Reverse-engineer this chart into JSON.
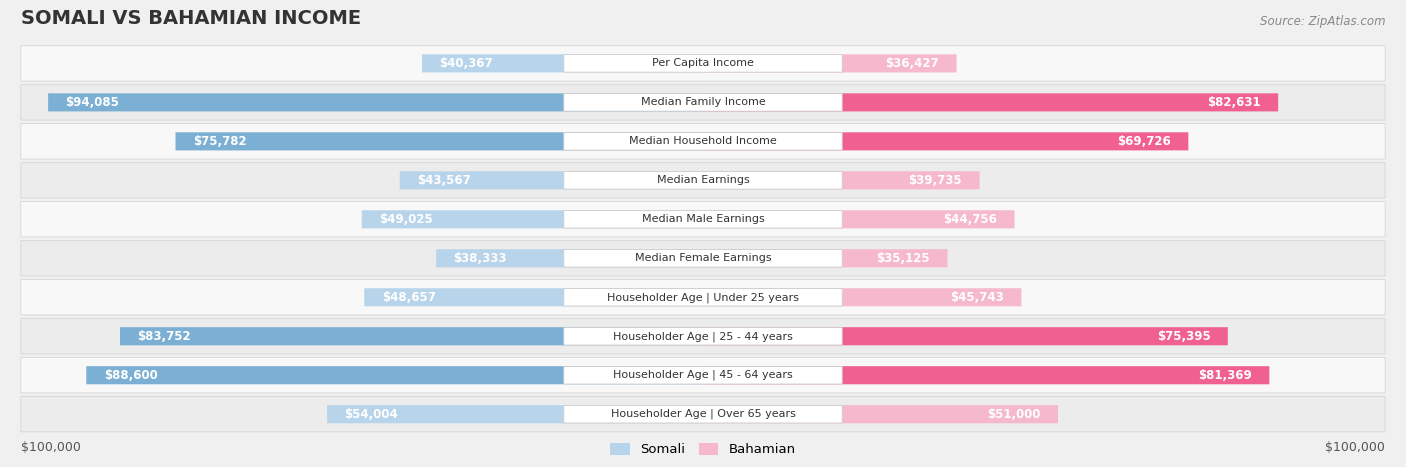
{
  "title": "SOMALI VS BAHAMIAN INCOME",
  "source": "Source: ZipAtlas.com",
  "categories": [
    "Per Capita Income",
    "Median Family Income",
    "Median Household Income",
    "Median Earnings",
    "Median Male Earnings",
    "Median Female Earnings",
    "Householder Age | Under 25 years",
    "Householder Age | 25 - 44 years",
    "Householder Age | 45 - 64 years",
    "Householder Age | Over 65 years"
  ],
  "somali_values": [
    40367,
    94085,
    75782,
    43567,
    49025,
    38333,
    48657,
    83752,
    88600,
    54004
  ],
  "bahamian_values": [
    36427,
    82631,
    69726,
    39735,
    44756,
    35125,
    45743,
    75395,
    81369,
    51000
  ],
  "max_value": 100000,
  "somali_light": "#b8d4ea",
  "somali_dark": "#7bafd4",
  "bahamian_light": "#f5b8cc",
  "bahamian_dark": "#f06090",
  "somali_threshold": 60000,
  "bahamian_threshold": 60000,
  "background_color": "#f0f0f0",
  "row_bg_odd": "#f8f8f8",
  "row_bg_even": "#ececec",
  "label_bg": "#ffffff",
  "xlabel_left": "$100,000",
  "xlabel_right": "$100,000",
  "legend_somali": "Somali",
  "legend_bahamian": "Bahamian"
}
